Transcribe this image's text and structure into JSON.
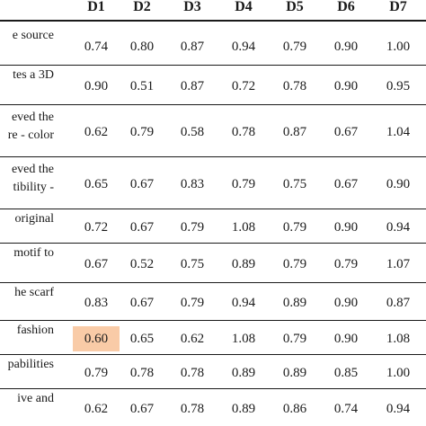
{
  "columns": [
    "D1",
    "D2",
    "D3",
    "D4",
    "D5",
    "D6",
    "D7"
  ],
  "rows": [
    {
      "label_lines": [
        "e source"
      ],
      "values": [
        "0.74",
        "0.80",
        "0.87",
        "0.94",
        "0.79",
        "0.90",
        "1.00"
      ]
    },
    {
      "label_lines": [
        "tes a 3D"
      ],
      "values": [
        "0.90",
        "0.51",
        "0.87",
        "0.72",
        "0.78",
        "0.90",
        "0.95"
      ]
    },
    {
      "label_lines": [
        "eved  the",
        "re - color"
      ],
      "values": [
        "0.62",
        "0.79",
        "0.58",
        "0.78",
        "0.87",
        "0.67",
        "1.04"
      ]
    },
    {
      "label_lines": [
        "eved  the",
        "tibility  -"
      ],
      "values": [
        "0.65",
        "0.67",
        "0.83",
        "0.79",
        "0.75",
        "0.67",
        "0.90"
      ]
    },
    {
      "label_lines": [
        "original"
      ],
      "values": [
        "0.72",
        "0.67",
        "0.79",
        "1.08",
        "0.79",
        "0.90",
        "0.94"
      ]
    },
    {
      "label_lines": [
        "motif to"
      ],
      "values": [
        "0.67",
        "0.52",
        "0.75",
        "0.89",
        "0.79",
        "0.79",
        "1.07"
      ]
    },
    {
      "label_lines": [
        "he scarf"
      ],
      "values": [
        "0.83",
        "0.67",
        "0.79",
        "0.94",
        "0.89",
        "0.90",
        "0.87"
      ]
    },
    {
      "label_lines": [
        "fashion"
      ],
      "values": [
        "0.60",
        "0.65",
        "0.62",
        "1.08",
        "0.79",
        "0.90",
        "1.08"
      ]
    },
    {
      "label_lines": [
        "pabilities"
      ],
      "values": [
        "0.79",
        "0.78",
        "0.78",
        "0.89",
        "0.89",
        "0.85",
        "1.00"
      ]
    },
    {
      "label_lines": [
        "ive   and"
      ],
      "values": [
        "0.62",
        "0.67",
        "0.78",
        "0.89",
        "0.86",
        "0.74",
        "0.94"
      ]
    }
  ],
  "highlight": {
    "row": 7,
    "col": 0,
    "color": "#f9cba7"
  }
}
